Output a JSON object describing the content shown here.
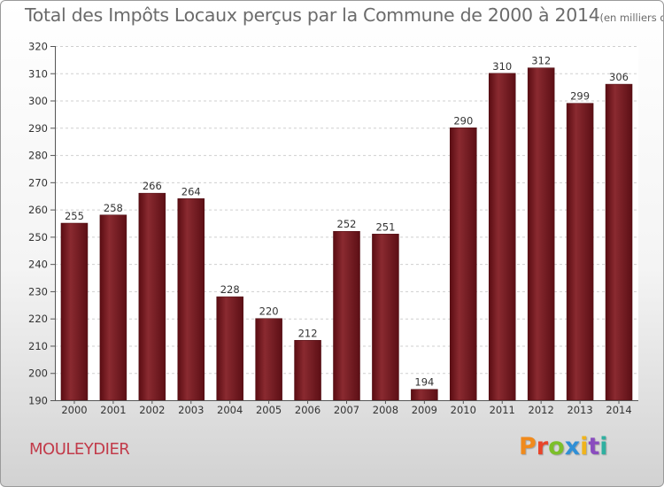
{
  "header": {
    "title": "Total des Impôts Locaux perçus par la Commune de 2000 à 2014",
    "unit": "(en milliers d'€)"
  },
  "footer": {
    "commune": "MOULEYDIER",
    "brand": "Proxiti",
    "brand_colors": [
      "#f08a1c",
      "#e8452a",
      "#7cbf2a",
      "#2f8fd6",
      "#f0b41c",
      "#8a4cbf",
      "#2fb0a0"
    ]
  },
  "chart_data": {
    "type": "bar",
    "title": "Total des Impôts Locaux perçus par la Commune de 2000 à 2014",
    "subtitle": "(en milliers d'€)",
    "xlabel": "",
    "ylabel": "",
    "categories": [
      "2000",
      "2001",
      "2002",
      "2003",
      "2004",
      "2005",
      "2006",
      "2007",
      "2008",
      "2009",
      "2010",
      "2011",
      "2012",
      "2013",
      "2014"
    ],
    "values": [
      255,
      258,
      266,
      264,
      228,
      220,
      212,
      252,
      251,
      194,
      290,
      310,
      312,
      299,
      306
    ],
    "ylim": [
      190,
      320
    ],
    "yticks": [
      190,
      200,
      210,
      220,
      230,
      240,
      250,
      260,
      270,
      280,
      290,
      300,
      310,
      320
    ],
    "grid": true,
    "legend": "none",
    "bar_color": "#7a1a22"
  }
}
